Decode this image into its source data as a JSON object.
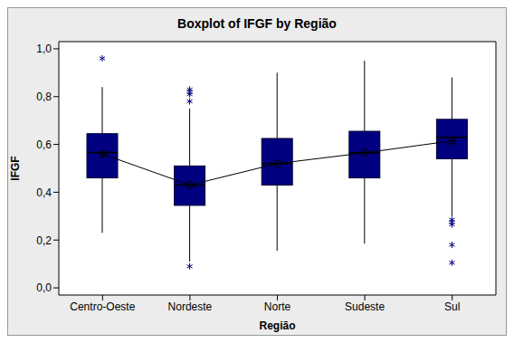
{
  "chart_data": {
    "type": "boxplot",
    "title": "Boxplot of IFGF by Região",
    "x_label": "Região",
    "y_label": "IFGF",
    "categories": [
      "Centro-Oeste",
      "Nordeste",
      "Norte",
      "Sudeste",
      "Sul"
    ],
    "color": "#000080",
    "whisker_low": [
      0.23,
      0.11,
      0.155,
      0.185,
      0.3
    ],
    "q1": [
      0.46,
      0.345,
      0.43,
      0.46,
      0.54
    ],
    "median": [
      0.566,
      0.43,
      0.52,
      0.565,
      0.63
    ],
    "q3": [
      0.645,
      0.51,
      0.625,
      0.655,
      0.705
    ],
    "whisker_high": [
      0.84,
      0.75,
      0.9,
      0.95,
      0.88
    ],
    "mean": [
      0.56,
      0.43,
      0.52,
      0.565,
      0.615
    ],
    "outliers": [
      [
        0.96
      ],
      [
        0.83,
        0.82,
        0.81,
        0.78,
        0.09
      ],
      [],
      [],
      [
        0.285,
        0.275,
        0.265,
        0.18,
        0.105
      ]
    ],
    "ylim": [
      -0.03,
      1.03
    ],
    "yticks": [
      {
        "value": 0,
        "label": "0,0"
      },
      {
        "value": 0.2,
        "label": "0,2"
      },
      {
        "value": 0.4,
        "label": "0,4"
      },
      {
        "value": 0.6,
        "label": "0,6"
      },
      {
        "value": 0.8,
        "label": "0,8"
      },
      {
        "value": 1,
        "label": "1,0"
      }
    ],
    "grid": false,
    "marker": "asterisk"
  }
}
